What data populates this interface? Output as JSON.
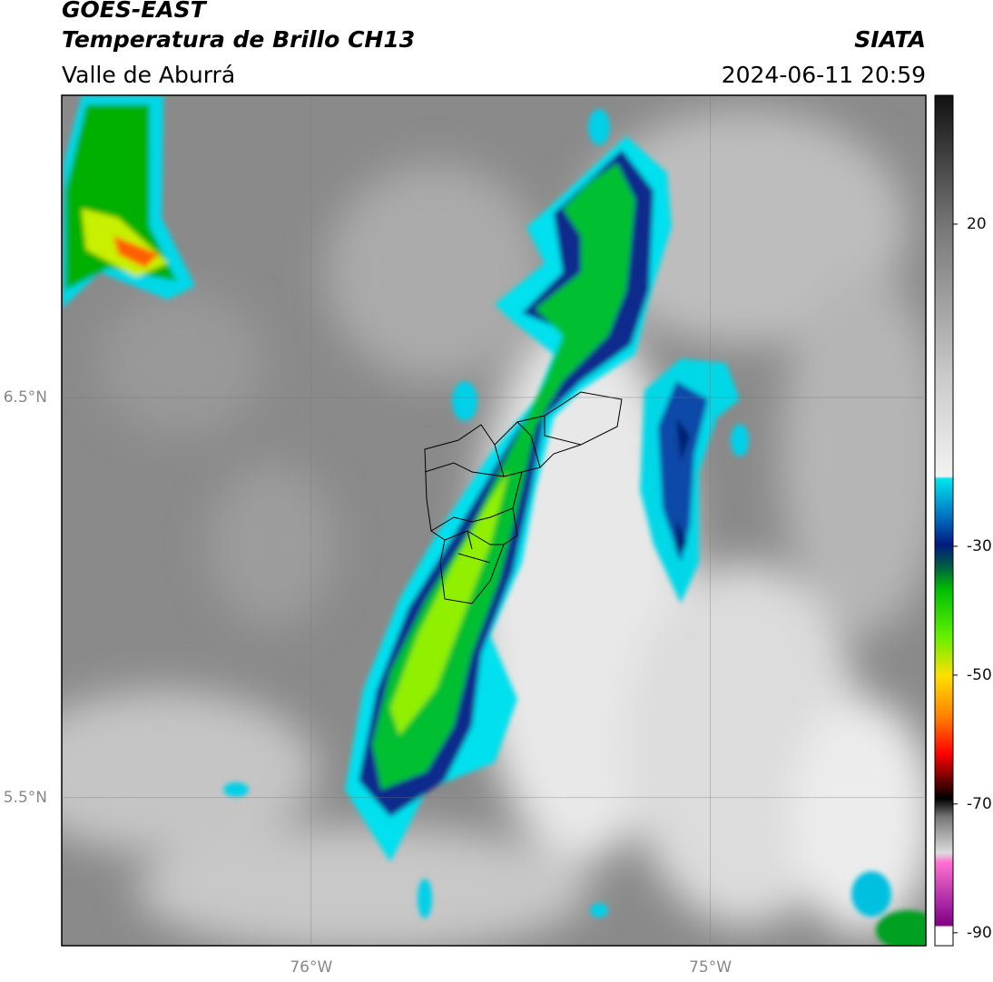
{
  "chart_data": {
    "type": "map",
    "title": "GOES-EAST",
    "subtitle": "Temperatura de Brillo CH13",
    "region": "Valle de Aburrá",
    "source": "SIATA",
    "timestamp": "2024-06-11 20:59",
    "xlim": [
      -76.625,
      -74.46
    ],
    "ylim": [
      5.13,
      7.255
    ],
    "xticks": [
      {
        "value": -76,
        "label": "76°W"
      },
      {
        "value": -75,
        "label": "75°W"
      }
    ],
    "yticks": [
      {
        "value": 6.5,
        "label": "6.5°N"
      },
      {
        "value": 5.5,
        "label": "5.5°N"
      }
    ],
    "grid": true,
    "colorbar": {
      "clim": [
        -92,
        40
      ],
      "ticks": [
        20,
        -30,
        -50,
        -70,
        -90
      ]
    }
  }
}
